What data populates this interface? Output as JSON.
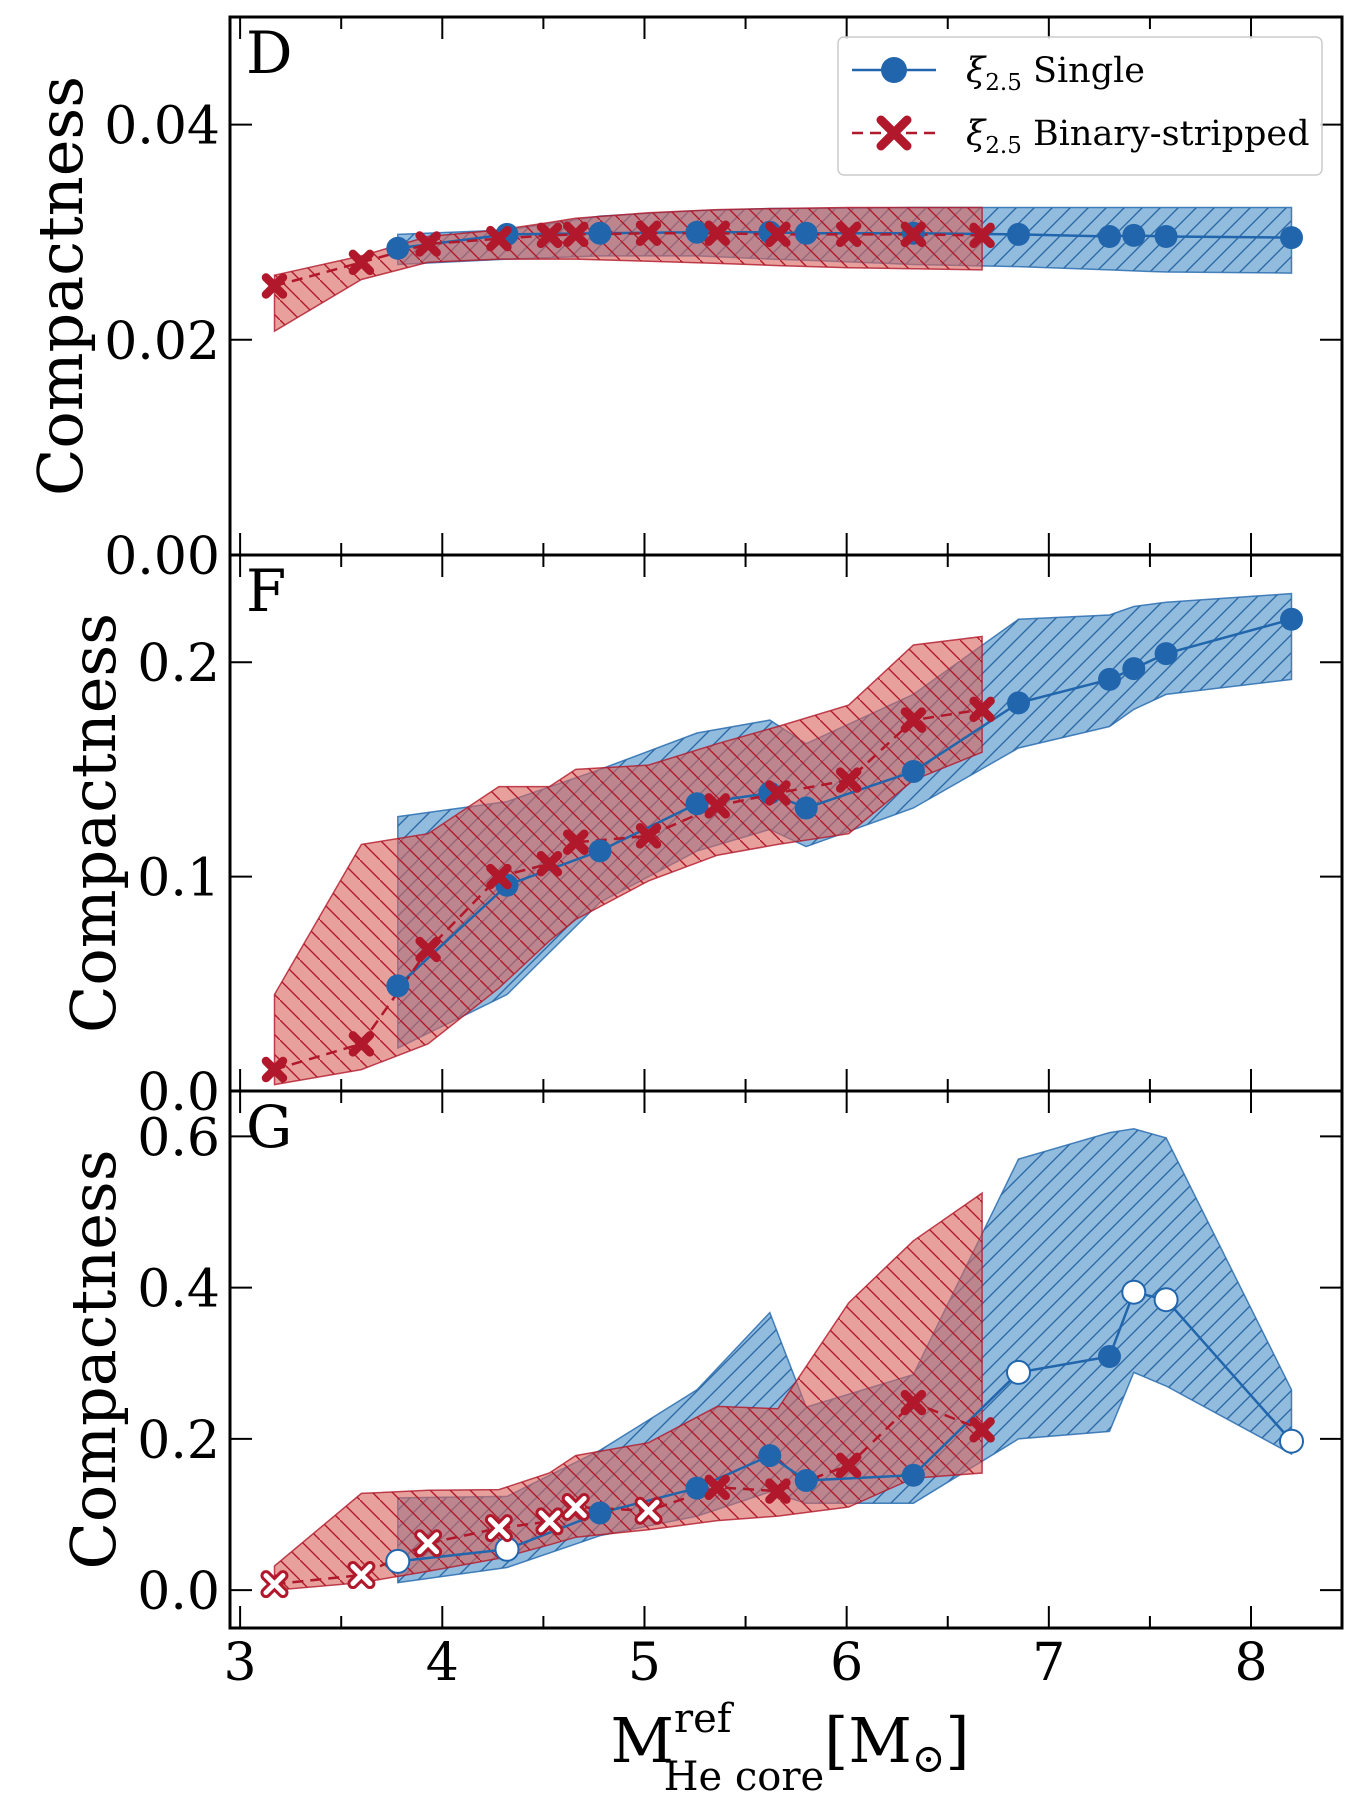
{
  "xlabel_main": "M",
  "xlabel_sup": "ref",
  "xlabel_sub": "He core",
  "xlabel_unit_open": "[M",
  "xlabel_unit_sun": "⊙",
  "xlabel_unit_close": "]",
  "xticks": [
    3,
    4,
    5,
    6,
    7,
    8
  ],
  "xticklabels": [
    "3",
    "4",
    "5",
    "6",
    "7",
    "8"
  ],
  "xlim": [
    2.95,
    8.45
  ],
  "legend": {
    "single_sym": "ξ",
    "single_sub": "2.5",
    "single_text": " Single",
    "binary_sym": "ξ",
    "binary_sub": "2.5",
    "binary_text": " Binary-stripped"
  },
  "colors": {
    "single": "#2166ac",
    "single_fill": "#4f93c9",
    "binary": "#b2182b",
    "binary_fill": "#d9665e"
  },
  "chart_data": [
    {
      "type": "line",
      "panel": "D",
      "ylabel": "Compactness",
      "ylim": [
        0,
        0.05
      ],
      "yticks": [
        0,
        0.02,
        0.04
      ],
      "yticklabels": [
        "0.00",
        "0.02",
        "0.04"
      ],
      "series": [
        {
          "name": "ξ2.5 Single",
          "x": [
            3.78,
            4.32,
            4.78,
            5.26,
            5.62,
            5.8,
            6.33,
            6.85,
            7.3,
            7.42,
            7.58,
            8.2
          ],
          "y": [
            0.0285,
            0.0298,
            0.0299,
            0.03,
            0.03,
            0.0299,
            0.0299,
            0.0298,
            0.0296,
            0.0297,
            0.0296,
            0.0295
          ],
          "band_upper": [
            0.0298,
            0.0302,
            0.0315,
            0.032,
            0.0322,
            0.0322,
            0.0323,
            0.0323,
            0.0323,
            0.0323,
            0.0323,
            0.0323
          ],
          "band_lower": [
            0.027,
            0.0275,
            0.0278,
            0.0278,
            0.0275,
            0.0274,
            0.027,
            0.0268,
            0.0265,
            0.0264,
            0.0263,
            0.0262
          ]
        },
        {
          "name": "ξ2.5 Binary-stripped",
          "x": [
            3.17,
            3.6,
            3.93,
            4.28,
            4.53,
            4.66,
            5.02,
            5.36,
            5.66,
            6.01,
            6.33,
            6.67
          ],
          "y": [
            0.025,
            0.0272,
            0.0289,
            0.0294,
            0.0297,
            0.0298,
            0.0299,
            0.0299,
            0.0298,
            0.0298,
            0.0298,
            0.0297
          ],
          "band_upper": [
            0.026,
            0.0278,
            0.0296,
            0.0302,
            0.0309,
            0.0313,
            0.0318,
            0.0321,
            0.0322,
            0.0323,
            0.0323,
            0.0323
          ],
          "band_lower": [
            0.0208,
            0.0256,
            0.0272,
            0.0275,
            0.0275,
            0.0275,
            0.0273,
            0.0271,
            0.0269,
            0.0267,
            0.0266,
            0.0265
          ]
        }
      ]
    },
    {
      "type": "line",
      "panel": "F",
      "ylabel": "Compactness",
      "ylim": [
        0,
        0.25
      ],
      "yticks": [
        0,
        0.1,
        0.2
      ],
      "yticklabels": [
        "0.0",
        "0.1",
        "0.2"
      ],
      "series": [
        {
          "name": "ξ2.5 Single",
          "x": [
            3.78,
            4.32,
            4.78,
            5.26,
            5.62,
            5.8,
            6.33,
            6.85,
            7.3,
            7.42,
            7.58,
            8.2
          ],
          "y": [
            0.049,
            0.096,
            0.112,
            0.134,
            0.139,
            0.132,
            0.149,
            0.181,
            0.192,
            0.197,
            0.204,
            0.22
          ],
          "band_upper": [
            0.128,
            0.135,
            0.15,
            0.167,
            0.173,
            0.162,
            0.185,
            0.22,
            0.222,
            0.226,
            0.228,
            0.232
          ],
          "band_lower": [
            0.02,
            0.045,
            0.088,
            0.112,
            0.122,
            0.114,
            0.132,
            0.16,
            0.17,
            0.178,
            0.185,
            0.192
          ]
        },
        {
          "name": "ξ2.5 Binary-stripped",
          "x": [
            3.17,
            3.6,
            3.93,
            4.28,
            4.53,
            4.66,
            5.02,
            5.36,
            5.66,
            6.01,
            6.33,
            6.67
          ],
          "y": [
            0.01,
            0.022,
            0.066,
            0.1,
            0.106,
            0.116,
            0.119,
            0.133,
            0.139,
            0.145,
            0.173,
            0.178
          ],
          "band_upper": [
            0.045,
            0.115,
            0.12,
            0.142,
            0.142,
            0.15,
            0.152,
            0.162,
            0.17,
            0.18,
            0.208,
            0.212
          ],
          "band_lower": [
            0.003,
            0.01,
            0.022,
            0.048,
            0.07,
            0.08,
            0.098,
            0.11,
            0.115,
            0.12,
            0.145,
            0.158
          ]
        }
      ]
    },
    {
      "type": "line",
      "panel": "G",
      "ylabel": "Compactness",
      "ylim": [
        -0.05,
        0.66
      ],
      "yticks": [
        0,
        0.2,
        0.4,
        0.6
      ],
      "yticklabels": [
        "0.0",
        "0.2",
        "0.4",
        "0.6"
      ],
      "series": [
        {
          "name": "ξ2.5 Single",
          "x": [
            3.78,
            4.32,
            4.78,
            5.26,
            5.62,
            5.8,
            6.33,
            6.85,
            7.3,
            7.42,
            7.58,
            8.2
          ],
          "y": [
            0.038,
            0.054,
            0.102,
            0.135,
            0.178,
            0.145,
            0.152,
            0.288,
            0.309,
            0.394,
            0.384,
            0.197
          ],
          "open_markers": [
            true,
            true,
            false,
            false,
            false,
            false,
            false,
            true,
            false,
            true,
            true,
            true
          ],
          "band_upper": [
            0.122,
            0.124,
            0.185,
            0.265,
            0.367,
            0.242,
            0.285,
            0.57,
            0.605,
            0.61,
            0.598,
            0.265
          ],
          "band_lower": [
            0.01,
            0.03,
            0.072,
            0.098,
            0.13,
            0.115,
            0.115,
            0.2,
            0.21,
            0.288,
            0.27,
            0.18
          ]
        },
        {
          "name": "ξ2.5 Binary-stripped",
          "x": [
            3.17,
            3.6,
            3.93,
            4.28,
            4.53,
            4.66,
            5.02,
            5.36,
            5.66,
            6.01,
            6.33,
            6.67
          ],
          "y": [
            0.008,
            0.02,
            0.062,
            0.082,
            0.091,
            0.11,
            0.105,
            0.136,
            0.131,
            0.165,
            0.248,
            0.212
          ],
          "open_markers": [
            true,
            true,
            true,
            true,
            true,
            true,
            true,
            false,
            false,
            false,
            false,
            false
          ],
          "band_upper": [
            0.032,
            0.128,
            0.132,
            0.133,
            0.155,
            0.178,
            0.195,
            0.243,
            0.24,
            0.38,
            0.462,
            0.525
          ],
          "band_lower": [
            0.0,
            0.01,
            0.025,
            0.042,
            0.06,
            0.07,
            0.08,
            0.092,
            0.098,
            0.11,
            0.148,
            0.155
          ]
        }
      ]
    }
  ]
}
